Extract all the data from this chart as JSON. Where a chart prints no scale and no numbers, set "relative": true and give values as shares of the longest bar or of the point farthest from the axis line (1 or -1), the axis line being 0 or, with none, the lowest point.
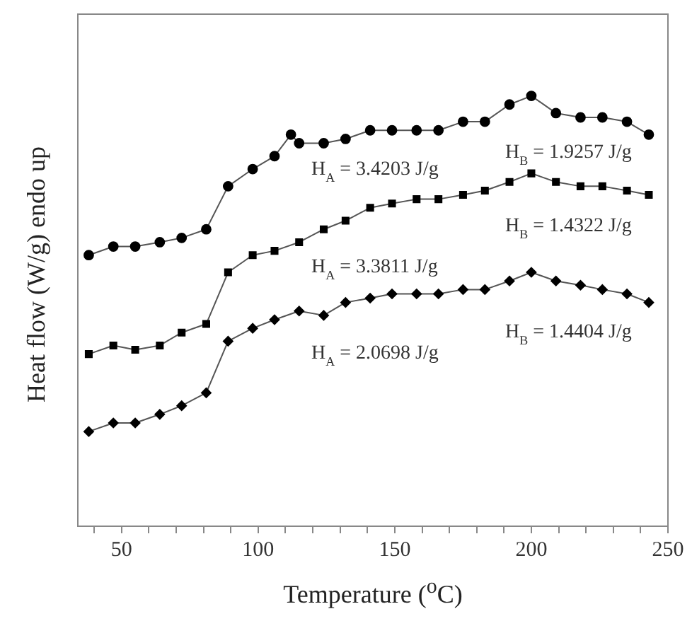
{
  "chart_data": {
    "type": "line",
    "xlabel": "Temperature ($^{o}$C)",
    "ylabel": "Heat flow (W/g) endo up",
    "relative": true,
    "xlim": [
      34,
      250
    ],
    "xticks": [
      {
        "value": 40,
        "label": null
      },
      50,
      {
        "value": 60,
        "label": null
      },
      {
        "value": 70,
        "label": null
      },
      {
        "value": 80,
        "label": null
      },
      {
        "value": 90,
        "label": null
      },
      100,
      {
        "value": 110,
        "label": null
      },
      {
        "value": 120,
        "label": null
      },
      {
        "value": 130,
        "label": null
      },
      {
        "value": 140,
        "label": null
      },
      150,
      {
        "value": 160,
        "label": null
      },
      {
        "value": 170,
        "label": null
      },
      {
        "value": 180,
        "label": null
      },
      {
        "value": 190,
        "label": null
      },
      200,
      {
        "value": 210,
        "label": null
      },
      {
        "value": 220,
        "label": null
      },
      {
        "value": 230,
        "label": null
      },
      {
        "value": 240,
        "label": null
      },
      250
    ],
    "x": [
      38,
      47,
      55,
      64,
      72,
      81,
      89,
      98,
      106,
      115,
      124,
      132,
      141,
      149,
      158,
      166,
      175,
      183,
      192,
      200,
      209,
      218,
      226,
      235,
      243
    ],
    "series": [
      {
        "color": "#000000",
        "marker": "circle",
        "x": [
          38,
          47,
          55,
          64,
          72,
          81,
          89,
          98,
          106,
          112,
          115,
          124,
          132,
          141,
          149,
          158,
          166,
          175,
          183,
          192,
          200,
          209,
          218,
          226,
          235,
          243
        ],
        "values": [
          0.63,
          0.65,
          0.65,
          0.66,
          0.67,
          0.69,
          0.79,
          0.83,
          0.86,
          0.91,
          0.89,
          0.89,
          0.9,
          0.92,
          0.92,
          0.92,
          0.92,
          0.94,
          0.94,
          0.98,
          1,
          0.96,
          0.95,
          0.95,
          0.94,
          0.91
        ]
      },
      {
        "color": "#000000",
        "marker": "square",
        "values": [
          0.4,
          0.42,
          0.41,
          0.42,
          0.45,
          0.47,
          0.59,
          0.63,
          0.64,
          0.66,
          0.69,
          0.71,
          0.74,
          0.75,
          0.76,
          0.76,
          0.77,
          0.78,
          0.8,
          0.82,
          0.8,
          0.79,
          0.79,
          0.78,
          0.77
        ]
      },
      {
        "color": "#000000",
        "marker": "diamond",
        "values": [
          0.22,
          0.24,
          0.24,
          0.26,
          0.28,
          0.31,
          0.43,
          0.46,
          0.48,
          0.5,
          0.49,
          0.52,
          0.53,
          0.54,
          0.54,
          0.54,
          0.55,
          0.55,
          0.57,
          0.59,
          0.57,
          0.56,
          0.55,
          0.54,
          0.52
        ]
      }
    ],
    "annotations": [
      "H$_{A}$ = 3.4203 J/g",
      "H$_{B}$ = 1.9257 J/g",
      "H$_{A}$ = 3.3811 J/g",
      "H$_{B}$ = 1.4322 J/g",
      "H$_{A}$ = 2.0698 J/g",
      "H$_{B}$ = 1.4404 J/g"
    ],
    "grid": false,
    "legend": false,
    "line_style": "solid"
  }
}
